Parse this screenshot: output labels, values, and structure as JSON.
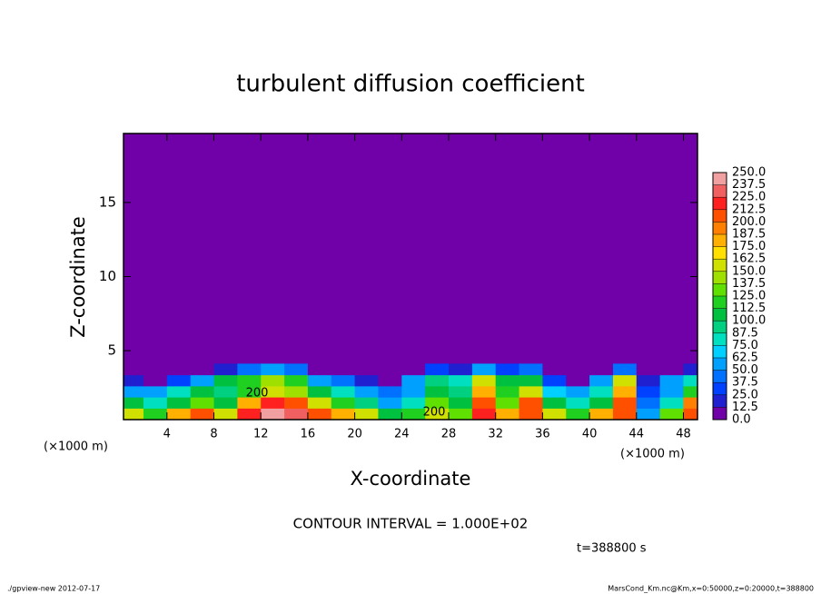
{
  "chart_data": {
    "type": "heatmap",
    "title": "turbulent diffusion coefficient",
    "x_label": "X-coordinate",
    "y_label": "Z-coordinate",
    "x_unit": "(×1000 m)",
    "x_unit_right": "(×1000 m)",
    "contour_note": "CONTOUR INTERVAL = 1.000E+02",
    "time_note": "t=388800 s",
    "footer_left": "./gpview-new  2012-07-17",
    "footer_right": "MarsCond_Km.nc@Km,x=0:50000,z=0:20000,t=388800",
    "annotations": [
      "200",
      "200"
    ],
    "background_value": 0,
    "xlim": [
      0.3,
      49.2
    ],
    "ylim": [
      0.35,
      19.65
    ],
    "xticks": [
      4,
      8,
      12,
      16,
      20,
      24,
      28,
      32,
      36,
      40,
      44,
      48
    ],
    "yticks": [
      5,
      10,
      15
    ],
    "x": [
      1,
      3,
      5,
      7,
      9,
      11,
      13,
      15,
      17,
      19,
      21,
      23,
      25,
      27,
      29,
      31,
      33,
      35,
      37,
      39,
      41,
      43,
      45,
      47,
      49
    ],
    "y": [
      0.75,
      1.5,
      2.25,
      3.0,
      3.75
    ],
    "z": [
      [
        150,
        120,
        180,
        200,
        150,
        220,
        240,
        230,
        210,
        180,
        150,
        100,
        120,
        150,
        130,
        220,
        180,
        210,
        160,
        120,
        180,
        200,
        60,
        130,
        210
      ],
      [
        100,
        80,
        110,
        130,
        100,
        180,
        220,
        200,
        160,
        120,
        90,
        60,
        80,
        130,
        110,
        200,
        130,
        200,
        110,
        80,
        110,
        200,
        40,
        80,
        190
      ],
      [
        60,
        50,
        80,
        100,
        90,
        120,
        150,
        140,
        100,
        80,
        60,
        40,
        60,
        100,
        90,
        180,
        120,
        160,
        70,
        50,
        80,
        180,
        30,
        60,
        120
      ],
      [
        20,
        10,
        30,
        60,
        100,
        120,
        140,
        120,
        60,
        40,
        20,
        10,
        50,
        90,
        80,
        150,
        100,
        110,
        30,
        10,
        50,
        150,
        20,
        50,
        80
      ],
      [
        0,
        0,
        0,
        0,
        20,
        40,
        50,
        40,
        0,
        0,
        0,
        0,
        10,
        30,
        20,
        60,
        30,
        40,
        0,
        0,
        10,
        40,
        0,
        10,
        20
      ]
    ],
    "levels": [
      {
        "value": 0,
        "label": "0.0"
      },
      {
        "value": 12.5,
        "label": "12.5"
      },
      {
        "value": 25,
        "label": "25.0"
      },
      {
        "value": 37.5,
        "label": "37.5"
      },
      {
        "value": 50,
        "label": "50.0"
      },
      {
        "value": 62.5,
        "label": "62.5"
      },
      {
        "value": 75,
        "label": "75.0"
      },
      {
        "value": 87.5,
        "label": "87.5"
      },
      {
        "value": 100,
        "label": "100.0"
      },
      {
        "value": 112.5,
        "label": "112.5"
      },
      {
        "value": 125,
        "label": "125.0"
      },
      {
        "value": 137.5,
        "label": "137.5"
      },
      {
        "value": 150,
        "label": "150.0"
      },
      {
        "value": 162.5,
        "label": "162.5"
      },
      {
        "value": 175,
        "label": "175.0"
      },
      {
        "value": 187.5,
        "label": "187.5"
      },
      {
        "value": 200,
        "label": "200.0"
      },
      {
        "value": 212.5,
        "label": "212.5"
      },
      {
        "value": 225,
        "label": "225.0"
      },
      {
        "value": 237.5,
        "label": "237.5"
      },
      {
        "value": 250,
        "label": "250.0"
      }
    ],
    "colors": [
      "#7000a8",
      "#2020d0",
      "#0040ff",
      "#0070ff",
      "#00a0ff",
      "#00d0ff",
      "#00e0c0",
      "#00d080",
      "#00c040",
      "#20d020",
      "#60e000",
      "#a0e000",
      "#d0e000",
      "#ffe000",
      "#ffb000",
      "#ff8000",
      "#ff5000",
      "#ff2020",
      "#f06060",
      "#f0a0a0"
    ]
  }
}
